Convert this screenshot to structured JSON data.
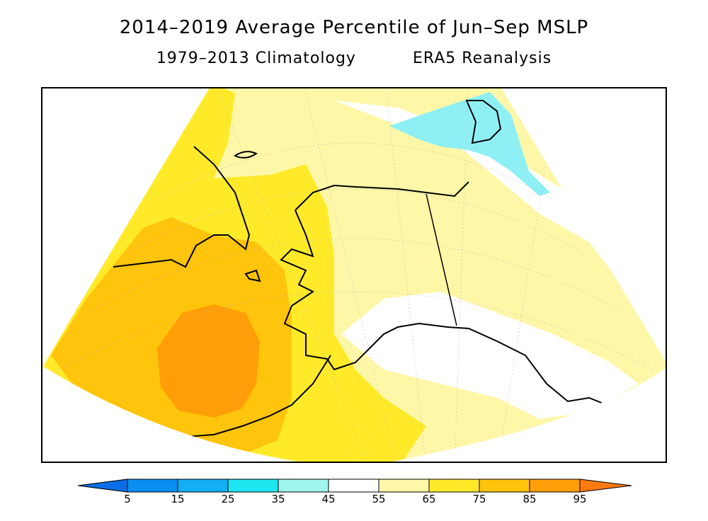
{
  "title": "2014–2019 Average Percentile of Jun–Sep MSLP",
  "subtitle_left": "1979–2013 Climatology",
  "subtitle_right": "ERA5 Reanalysis",
  "colorbar": {
    "ticks": [
      "5",
      "15",
      "25",
      "35",
      "45",
      "55",
      "65",
      "75",
      "85",
      "95"
    ],
    "bins": [
      {
        "range": "<5",
        "color": "#0a6ee6"
      },
      {
        "range": "5-15",
        "color": "#0a8ff0"
      },
      {
        "range": "15-25",
        "color": "#14aff2"
      },
      {
        "range": "25-35",
        "color": "#1ee6f0"
      },
      {
        "range": "35-45",
        "color": "#a0f5f0"
      },
      {
        "range": "45-55",
        "color": "#ffffff"
      },
      {
        "range": "55-65",
        "color": "#fff7a8"
      },
      {
        "range": "65-75",
        "color": "#ffea2a"
      },
      {
        "range": "75-85",
        "color": "#ffc40c"
      },
      {
        "range": "85-95",
        "color": "#ff9e08"
      },
      {
        "range": ">95",
        "color": "#ff7a10"
      }
    ]
  },
  "map": {
    "projection": "polar stereographic sector",
    "region": "Alaska, Bering Sea, Chukotka, Beaufort Sea",
    "fill_colors": {
      "blue": "#8ef0f4",
      "pale_yellow": "#fff7a8",
      "yellow": "#ffea2a",
      "gold": "#ffc40c",
      "orange": "#ff9e08"
    },
    "highest_percentile_region": "Bering Sea (85-95)",
    "lowest_percentile_region": "Chukchi/Arctic north (35-45)"
  }
}
